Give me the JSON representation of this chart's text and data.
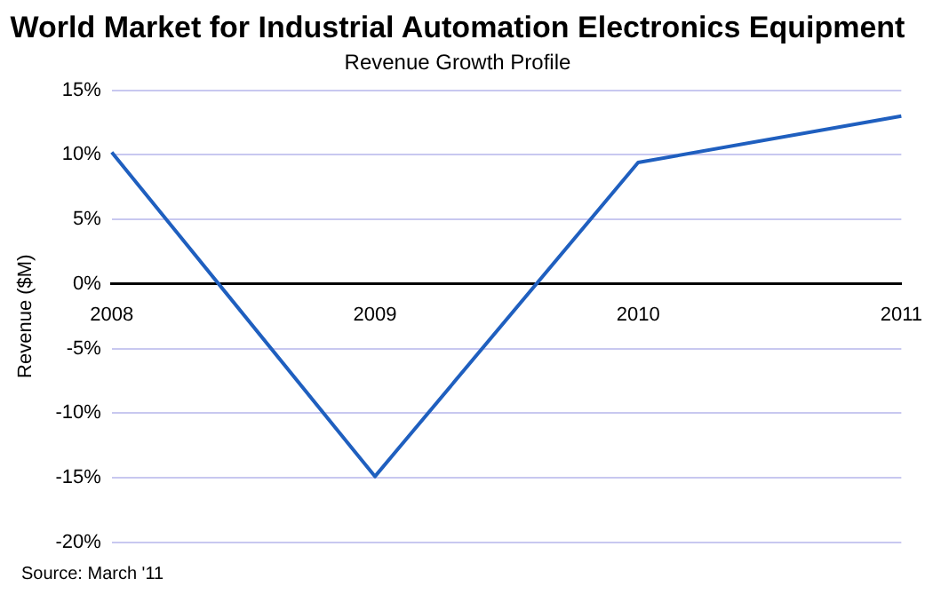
{
  "chart_data": {
    "type": "line",
    "title": "World Market for Industrial Automation Electronics Equipment",
    "subtitle": "Revenue Growth Profile",
    "ylabel": "Revenue ($M)",
    "categories": [
      "2008",
      "2009",
      "2010",
      "2011"
    ],
    "series": [
      {
        "color": "#1f5fbf",
        "values": [
          10.2,
          -14.9,
          9.4,
          13.0
        ]
      }
    ],
    "ylim": [
      -20,
      15
    ],
    "yticks": [
      {
        "value": -20,
        "label": "-20%"
      },
      {
        "value": -15,
        "label": "-15%"
      },
      {
        "value": -10,
        "label": "-10%"
      },
      {
        "value": -5,
        "label": "-5%"
      },
      {
        "value": 0,
        "label": "0%"
      },
      {
        "value": 5,
        "label": "5%"
      },
      {
        "value": 10,
        "label": "10%"
      },
      {
        "value": 15,
        "label": "15%"
      }
    ],
    "grid": "y",
    "legend": false,
    "marker": "none",
    "line_style": "solid",
    "annotations": [
      "Source: March '11"
    ]
  }
}
